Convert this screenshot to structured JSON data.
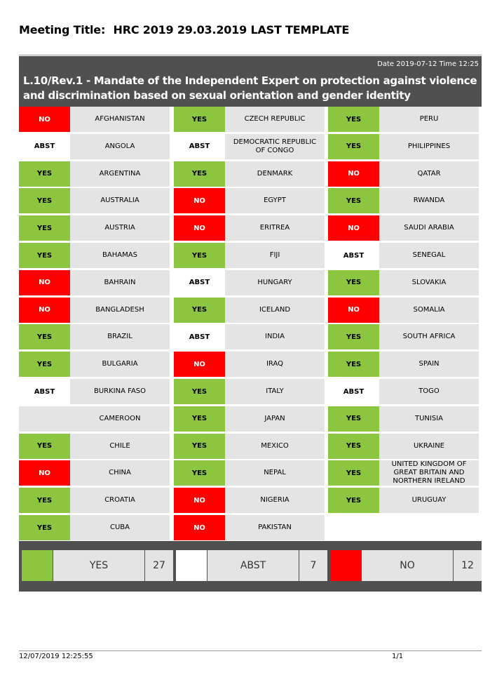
{
  "meeting": {
    "label": "Meeting Title:",
    "title": "HRC 2019 29.03.2019 LAST TEMPLATE"
  },
  "header": {
    "datetime": "Date 2019-07-12  Time 12:25",
    "resolution": "L.10/Rev.1 - Mandate of the Independent Expert on protection against violence and discrimination based on sexual orientation and gender identity"
  },
  "colors": {
    "yes": "#8cc540",
    "no": "#ff0000",
    "abst": "#ffffff",
    "cell": "#e4e4e4",
    "header": "#505050"
  },
  "columns": [
    [
      {
        "vote": "NO",
        "country": "AFGHANISTAN"
      },
      {
        "vote": "ABST",
        "country": "ANGOLA"
      },
      {
        "vote": "YES",
        "country": "ARGENTINA"
      },
      {
        "vote": "YES",
        "country": "AUSTRALIA"
      },
      {
        "vote": "YES",
        "country": "AUSTRIA"
      },
      {
        "vote": "YES",
        "country": "BAHAMAS"
      },
      {
        "vote": "NO",
        "country": "BAHRAIN"
      },
      {
        "vote": "NO",
        "country": "BANGLADESH"
      },
      {
        "vote": "YES",
        "country": "BRAZIL"
      },
      {
        "vote": "YES",
        "country": "BULGARIA"
      },
      {
        "vote": "ABST",
        "country": "BURKINA FASO"
      },
      {
        "vote": "",
        "country": "CAMEROON"
      },
      {
        "vote": "YES",
        "country": "CHILE"
      },
      {
        "vote": "NO",
        "country": "CHINA"
      },
      {
        "vote": "YES",
        "country": "CROATIA"
      },
      {
        "vote": "YES",
        "country": "CUBA"
      }
    ],
    [
      {
        "vote": "YES",
        "country": "CZECH REPUBLIC"
      },
      {
        "vote": "ABST",
        "country": "DEMOCRATIC REPUBLIC OF CONGO"
      },
      {
        "vote": "YES",
        "country": "DENMARK"
      },
      {
        "vote": "NO",
        "country": "EGYPT"
      },
      {
        "vote": "NO",
        "country": "ERITREA"
      },
      {
        "vote": "YES",
        "country": "FIJI"
      },
      {
        "vote": "ABST",
        "country": "HUNGARY"
      },
      {
        "vote": "YES",
        "country": "ICELAND"
      },
      {
        "vote": "ABST",
        "country": "INDIA"
      },
      {
        "vote": "NO",
        "country": "IRAQ"
      },
      {
        "vote": "YES",
        "country": "ITALY"
      },
      {
        "vote": "YES",
        "country": "JAPAN"
      },
      {
        "vote": "YES",
        "country": "MEXICO"
      },
      {
        "vote": "YES",
        "country": "NEPAL"
      },
      {
        "vote": "NO",
        "country": "NIGERIA"
      },
      {
        "vote": "NO",
        "country": "PAKISTAN"
      }
    ],
    [
      {
        "vote": "YES",
        "country": "PERU"
      },
      {
        "vote": "YES",
        "country": "PHILIPPINES"
      },
      {
        "vote": "NO",
        "country": "QATAR"
      },
      {
        "vote": "YES",
        "country": "RWANDA"
      },
      {
        "vote": "NO",
        "country": "SAUDI ARABIA"
      },
      {
        "vote": "ABST",
        "country": "SENEGAL"
      },
      {
        "vote": "YES",
        "country": "SLOVAKIA"
      },
      {
        "vote": "NO",
        "country": "SOMALIA"
      },
      {
        "vote": "YES",
        "country": "SOUTH AFRICA"
      },
      {
        "vote": "YES",
        "country": "SPAIN"
      },
      {
        "vote": "ABST",
        "country": "TOGO"
      },
      {
        "vote": "YES",
        "country": "TUNISIA"
      },
      {
        "vote": "YES",
        "country": "UKRAINE"
      },
      {
        "vote": "YES",
        "country": "UNITED KINGDOM OF GREAT BRITAIN AND NORTHERN IRELAND"
      },
      {
        "vote": "YES",
        "country": "URUGUAY"
      }
    ]
  ],
  "totals": [
    {
      "kind": "yes",
      "label": "YES",
      "count": "27"
    },
    {
      "kind": "abst",
      "label": "ABST",
      "count": "7"
    },
    {
      "kind": "no",
      "label": "NO",
      "count": "12"
    }
  ],
  "footer": {
    "timestamp": "12/07/2019 12:25:55",
    "page": "1/1"
  }
}
